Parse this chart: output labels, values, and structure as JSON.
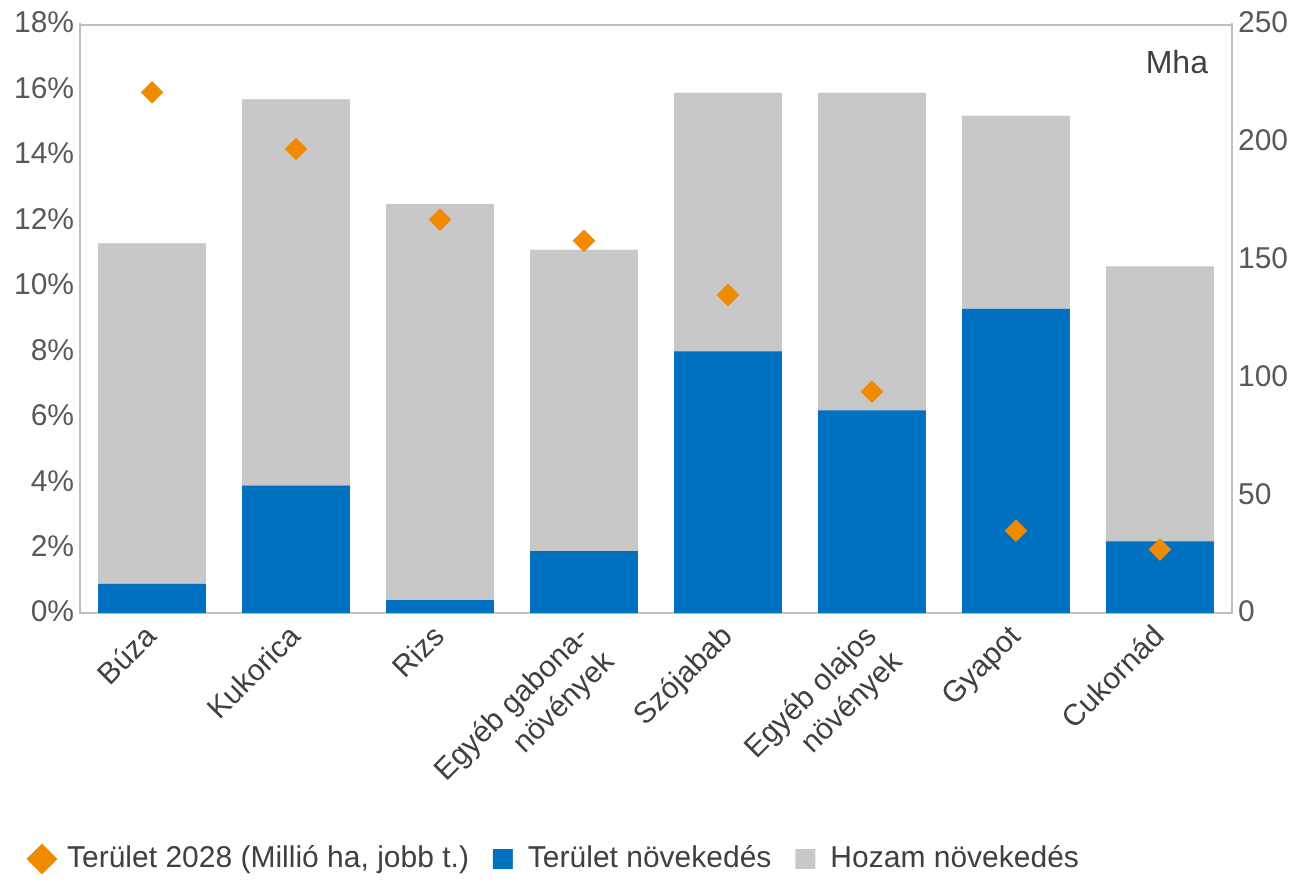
{
  "chart_data": {
    "type": "bar",
    "stacked": true,
    "categories": [
      "Búza",
      "Kukorica",
      "Rizs",
      "Egyéb gabona-\nnövények",
      "Szójabab",
      "Egyéb olajos\nnövények",
      "Gyapot",
      "Cukornád"
    ],
    "series": [
      {
        "name": "Terület növekedés",
        "color": "#0070c0",
        "values": [
          0.9,
          3.9,
          0.4,
          1.9,
          8.0,
          6.2,
          9.3,
          2.2
        ]
      },
      {
        "name": "Hozam növekedés",
        "color": "#c8c8c8",
        "values": [
          10.4,
          11.8,
          12.1,
          9.2,
          7.9,
          9.7,
          5.9,
          8.4
        ]
      },
      {
        "name": "Terület 2028 (Millió ha, jobb t.)",
        "type": "scatter",
        "axis": "y2",
        "marker": "diamond",
        "color": "#f08a00",
        "values": [
          221,
          197,
          167,
          158,
          135,
          94,
          35,
          27
        ]
      }
    ],
    "ylim": [
      0,
      18
    ],
    "yticks": [
      {
        "value": 0,
        "label": "0%"
      },
      {
        "value": 2,
        "label": "2%"
      },
      {
        "value": 4,
        "label": "4%"
      },
      {
        "value": 6,
        "label": "6%"
      },
      {
        "value": 8,
        "label": "8%"
      },
      {
        "value": 10,
        "label": "10%"
      },
      {
        "value": 12,
        "label": "12%"
      },
      {
        "value": 14,
        "label": "14%"
      },
      {
        "value": 16,
        "label": "16%"
      },
      {
        "value": 18,
        "label": "18%"
      }
    ],
    "y2lim": [
      0,
      250
    ],
    "y2ticks": [
      0,
      50,
      100,
      150,
      200,
      250
    ],
    "annotations": [
      "Mha"
    ],
    "grid": false,
    "legend": "bottom"
  }
}
